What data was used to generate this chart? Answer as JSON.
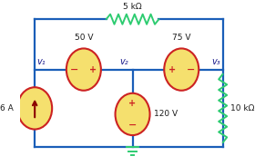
{
  "bg_color": "#ffffff",
  "wire_color": "#1a5eb8",
  "resistor_color": "#2ecc71",
  "source_fill": "#f5e06e",
  "source_edge": "#cc2222",
  "arrow_color": "#8b0000",
  "text_color": "#1a1a1a",
  "label_color": "#1a1a8c",
  "top_resistor_label": "5 kΩ",
  "bot_right_resistor_label": "10 kΩ",
  "v1_label": "v₁",
  "v2_label": "v₂",
  "v3_label": "v₃",
  "src50_label": "50 V",
  "src75_label": "75 V",
  "src120_label": "120 V",
  "src6_label": "6 A",
  "fig_width": 2.8,
  "fig_height": 1.83,
  "dpi": 100,
  "xlim": [
    0,
    28
  ],
  "ylim": [
    0,
    18
  ]
}
